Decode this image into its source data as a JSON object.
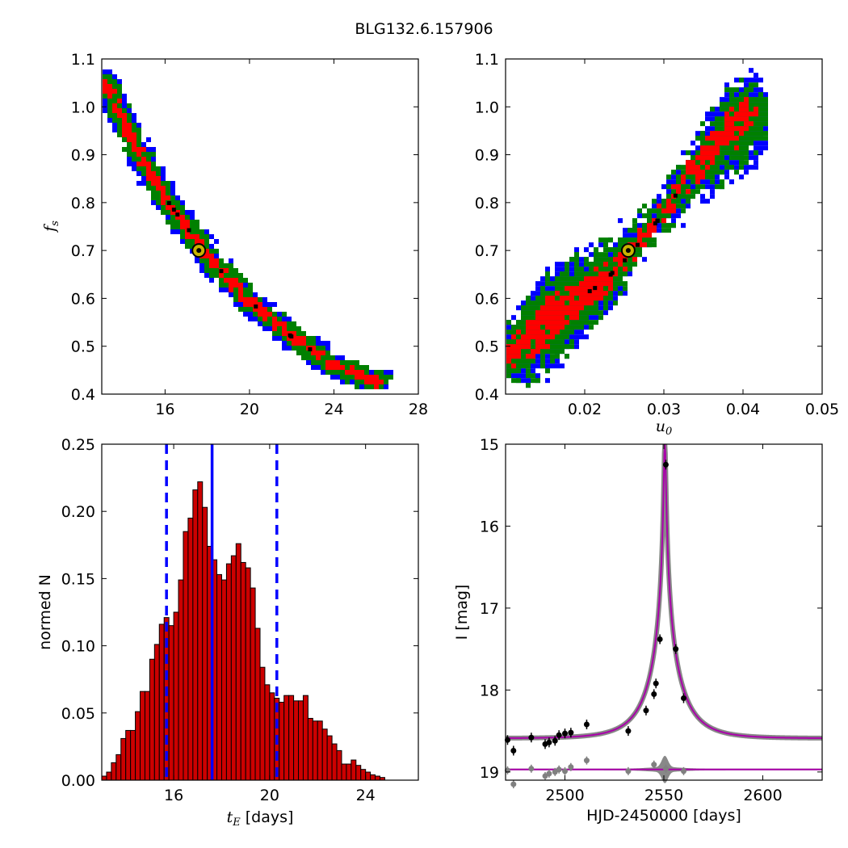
{
  "title": "BLG132.6.157906",
  "panels": {
    "tl": {
      "ylabel": "f_s",
      "xticks": [
        "16",
        "20",
        "24",
        "28"
      ],
      "yticks": [
        "0.4",
        "0.5",
        "0.6",
        "0.7",
        "0.8",
        "0.9",
        "1.0",
        "1.1"
      ]
    },
    "tr": {
      "xlabel": "u_0",
      "xticks": [
        "0.02",
        "0.03",
        "0.04",
        "0.05"
      ],
      "yticks": [
        "0.4",
        "0.5",
        "0.6",
        "0.7",
        "0.8",
        "0.9",
        "1.0",
        "1.1"
      ]
    },
    "bl": {
      "xlabel_var": "t_E",
      "xlabel_unit": "[days]",
      "ylabel": "normed N",
      "xticks": [
        "16",
        "20",
        "24"
      ],
      "yticks": [
        "0.00",
        "0.05",
        "0.10",
        "0.15",
        "0.20",
        "0.25"
      ]
    },
    "br": {
      "xlabel": "HJD-2450000 [days]",
      "ylabel": "I [mag]",
      "xticks": [
        "2500",
        "2550",
        "2600"
      ],
      "yticks": [
        "15",
        "16",
        "17",
        "18",
        "19"
      ]
    }
  },
  "colors": {
    "c3": "#0000ff",
    "c2": "#008000",
    "c1": "#ff0000",
    "chain": "#000000",
    "best_fill": "#c8b400",
    "hist": "#cc0000",
    "model": "#aa00aa",
    "resid": "#808080"
  },
  "chart_data": [
    {
      "type": "heatmap",
      "name": "tE_vs_fs",
      "xlim": [
        13,
        28
      ],
      "ylim": [
        0.4,
        1.1
      ],
      "best_fit": {
        "x": 17.6,
        "y": 0.7
      },
      "ridge": [
        [
          13.2,
          1.05
        ],
        [
          14.0,
          0.97
        ],
        [
          15.0,
          0.885
        ],
        [
          16.0,
          0.81
        ],
        [
          17.0,
          0.75
        ],
        [
          18.0,
          0.69
        ],
        [
          19.0,
          0.64
        ],
        [
          20.0,
          0.595
        ],
        [
          21.0,
          0.555
        ],
        [
          22.0,
          0.52
        ],
        [
          23.0,
          0.49
        ],
        [
          24.0,
          0.46
        ],
        [
          25.0,
          0.44
        ],
        [
          26.2,
          0.425
        ]
      ],
      "contours": [
        "1-sigma (red)",
        "2-sigma (green)",
        "3-sigma (blue)"
      ]
    },
    {
      "type": "heatmap",
      "name": "u0_vs_fs",
      "xlim": [
        0.01,
        0.05
      ],
      "ylim": [
        0.4,
        1.1
      ],
      "best_fit": {
        "x": 0.0255,
        "y": 0.7
      },
      "ridge": [
        [
          0.0105,
          0.48
        ],
        [
          0.013,
          0.52
        ],
        [
          0.016,
          0.56
        ],
        [
          0.019,
          0.6
        ],
        [
          0.022,
          0.63
        ],
        [
          0.025,
          0.68
        ],
        [
          0.028,
          0.74
        ],
        [
          0.03,
          0.78
        ],
        [
          0.032,
          0.83
        ],
        [
          0.034,
          0.87
        ],
        [
          0.037,
          0.93
        ],
        [
          0.04,
          0.98
        ]
      ],
      "contours": [
        "1-sigma (red)",
        "2-sigma (green)",
        "3-sigma (blue)"
      ]
    },
    {
      "type": "bar",
      "name": "tE_histogram",
      "xlim": [
        13.0,
        26.2
      ],
      "ylim": [
        0,
        0.25
      ],
      "bin_start": 13.0,
      "bin_width": 0.2,
      "values": [
        0.003,
        0.006,
        0.013,
        0.019,
        0.031,
        0.037,
        0.037,
        0.051,
        0.066,
        0.066,
        0.09,
        0.101,
        0.116,
        0.121,
        0.115,
        0.125,
        0.149,
        0.185,
        0.195,
        0.216,
        0.222,
        0.203,
        0.174,
        0.164,
        0.153,
        0.149,
        0.161,
        0.167,
        0.176,
        0.162,
        0.158,
        0.143,
        0.113,
        0.084,
        0.071,
        0.065,
        0.061,
        0.058,
        0.063,
        0.063,
        0.059,
        0.059,
        0.063,
        0.046,
        0.044,
        0.044,
        0.038,
        0.033,
        0.027,
        0.022,
        0.012,
        0.012,
        0.015,
        0.011,
        0.008,
        0.006,
        0.004,
        0.003,
        0.002
      ],
      "median": 17.6,
      "dashed_lines": [
        15.7,
        20.3
      ]
    },
    {
      "type": "line",
      "name": "light_curve",
      "xlim": [
        2470,
        2630
      ],
      "ylim": [
        19.1,
        15.0
      ],
      "model": {
        "t0": 2550.5,
        "u0": 0.025,
        "tE": 17.6,
        "base": 18.59
      },
      "points": [
        [
          2471,
          18.61
        ],
        [
          2474,
          18.74
        ],
        [
          2483,
          18.58
        ],
        [
          2490,
          18.66
        ],
        [
          2492,
          18.64
        ],
        [
          2495,
          18.62
        ],
        [
          2497,
          18.55
        ],
        [
          2500,
          18.53
        ],
        [
          2503,
          18.52
        ],
        [
          2511,
          18.42
        ],
        [
          2532,
          18.5
        ],
        [
          2541,
          18.25
        ],
        [
          2545,
          18.05
        ],
        [
          2546,
          17.92
        ],
        [
          2548,
          17.38
        ],
        [
          2551,
          15.25
        ],
        [
          2556,
          17.5
        ],
        [
          2560,
          18.1
        ]
      ],
      "residual_level": 18.97,
      "residual_points": [
        [
          2471,
          18.98
        ],
        [
          2474,
          19.15
        ],
        [
          2483,
          18.96
        ],
        [
          2490,
          19.05
        ],
        [
          2492,
          19.02
        ],
        [
          2495,
          19.0
        ],
        [
          2497,
          18.97
        ],
        [
          2500,
          18.99
        ],
        [
          2503,
          18.94
        ],
        [
          2511,
          18.86
        ],
        [
          2532,
          18.99
        ],
        [
          2545,
          18.91
        ],
        [
          2551,
          18.96
        ],
        [
          2560,
          18.99
        ]
      ]
    }
  ]
}
